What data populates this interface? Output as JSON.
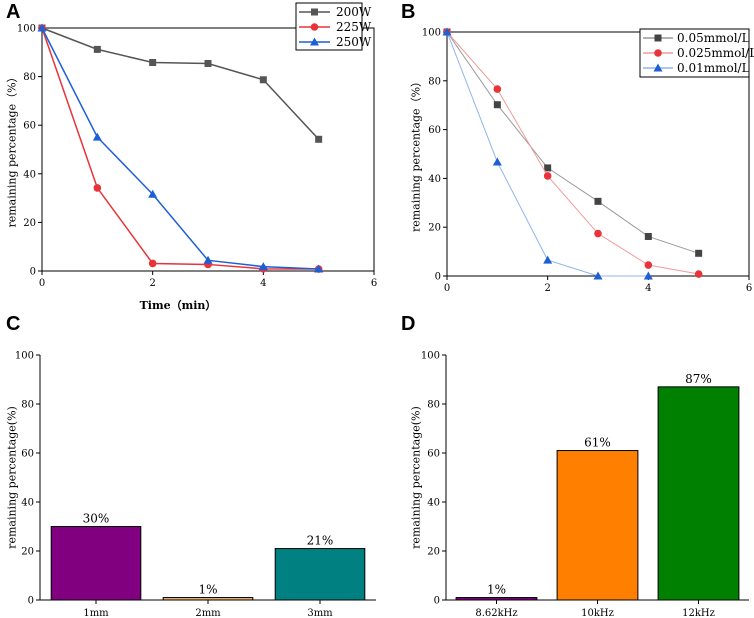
{
  "chart_data": [
    {
      "panel": "A",
      "type": "line",
      "xlabel": "Time（min）",
      "ylabel": "remaining percentage（%）",
      "xlim": [
        0,
        6
      ],
      "ylim": [
        0,
        100
      ],
      "xticks": [
        "0",
        "2",
        "4",
        "6"
      ],
      "yticks": [
        "0",
        "20",
        "40",
        "60",
        "80",
        "100"
      ],
      "legend_position": "top-right",
      "x": [
        0,
        1,
        2,
        3,
        4,
        5
      ],
      "series": [
        {
          "name": "200W",
          "color": "#555555",
          "marker": "square",
          "values": [
            100,
            91.2,
            85.8,
            85.4,
            78.7,
            54.2
          ]
        },
        {
          "name": "225W",
          "color": "#e8333a",
          "marker": "circle",
          "values": [
            100,
            34.2,
            3.1,
            2.7,
            0.9,
            0.8
          ]
        },
        {
          "name": "250W",
          "color": "#1f5fd6",
          "marker": "triangle",
          "values": [
            100,
            55.1,
            31.6,
            4.4,
            1.8,
            0.8
          ]
        }
      ]
    },
    {
      "panel": "B",
      "type": "line",
      "xlabel": "",
      "ylabel": "remaining percentage（%）",
      "xlim": [
        0,
        6
      ],
      "ylim": [
        0,
        100
      ],
      "xticks": [
        "0",
        "2",
        "4",
        "6"
      ],
      "yticks": [
        "0",
        "20",
        "40",
        "60",
        "80",
        "100"
      ],
      "legend_position": "top-right",
      "x": [
        0,
        1,
        2,
        3,
        4,
        5
      ],
      "series": [
        {
          "name": "0.05mmol/L",
          "color": "#444444",
          "line_color": "#9a9a9a",
          "marker": "square",
          "values": [
            100,
            70.2,
            44.3,
            30.6,
            16.2,
            9.3
          ]
        },
        {
          "name": "0.025mmol/L",
          "color": "#e8333a",
          "line_color": "#f29a9a",
          "marker": "circle",
          "values": [
            100,
            76.6,
            41.0,
            17.4,
            4.5,
            0.8
          ]
        },
        {
          "name": "0.01mmol/L",
          "color": "#1f5fd6",
          "line_color": "#8fb4ec",
          "marker": "triangle",
          "values": [
            100,
            46.7,
            6.5,
            0,
            0,
            null
          ]
        }
      ]
    },
    {
      "panel": "C",
      "type": "bar",
      "xlabel": "",
      "ylabel": "remaining percentage(%)",
      "ylim": [
        0,
        100
      ],
      "yticks": [
        "0",
        "20",
        "40",
        "60",
        "80",
        "100"
      ],
      "categories": [
        "1mm",
        "2mm",
        "3mm"
      ],
      "values": [
        30,
        1,
        21
      ],
      "data_labels": [
        "30%",
        "1%",
        "21%"
      ],
      "colors": [
        "#800080",
        "#f2b677",
        "#008080"
      ]
    },
    {
      "panel": "D",
      "type": "bar",
      "xlabel": "",
      "ylabel": "remaining percentage(%)",
      "ylim": [
        0,
        100
      ],
      "yticks": [
        "0",
        "20",
        "40",
        "60",
        "80",
        "100"
      ],
      "categories": [
        "8.62kHz",
        "10kHz",
        "12kHz"
      ],
      "values": [
        1,
        61,
        87
      ],
      "data_labels": [
        "1%",
        "61%",
        "87%"
      ],
      "colors": [
        "#800080",
        "#ff8000",
        "#008000"
      ]
    }
  ]
}
